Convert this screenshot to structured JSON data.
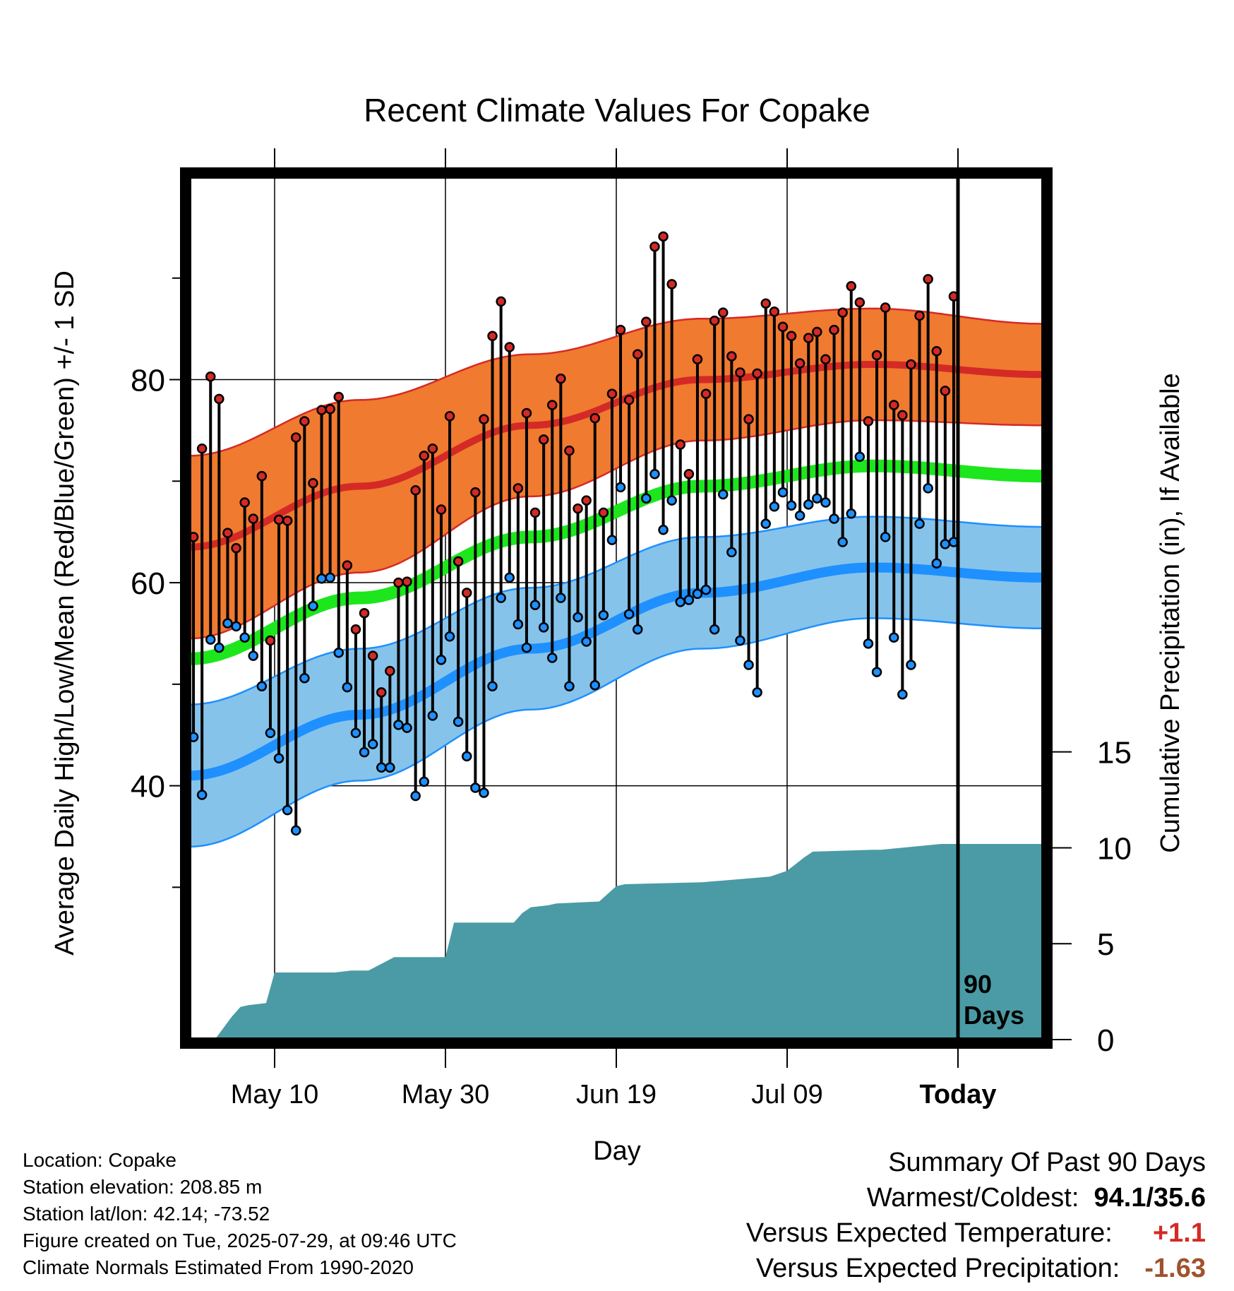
{
  "chart_data": {
    "type": "line",
    "title": "Recent Climate Values For Copake",
    "xlabel": "Day",
    "ylabel": "Average Daily High/Low/Mean (Red/Blue/Green) +/- 1 SD",
    "y2label": "Cumulative Precipitation (in), If Available",
    "xticks": [
      "May 10",
      "May 30",
      "Jun 19",
      "Jul 09",
      "Today"
    ],
    "yticks": [
      "40",
      "60",
      "80"
    ],
    "y2ticks": [
      "0",
      "5",
      "10",
      "15"
    ],
    "ylim": [
      15,
      100
    ],
    "y2lim": [
      0,
      45
    ],
    "x_start": "2025-04-30",
    "x_today": "2025-07-29",
    "x_end": "2025-08-08",
    "today_label": "90\nDays",
    "normals": {
      "days": [
        "2025-04-30",
        "2025-05-20",
        "2025-06-09",
        "2025-06-29",
        "2025-07-19",
        "2025-08-08"
      ],
      "high": [
        63.5,
        69.5,
        75.5,
        80.0,
        81.5,
        80.5
      ],
      "high_sd": [
        9.0,
        8.5,
        7.0,
        6.0,
        5.5,
        5.0
      ],
      "low": [
        41.0,
        47.0,
        53.5,
        59.0,
        61.5,
        60.5
      ],
      "low_sd": [
        7.0,
        6.5,
        6.0,
        5.5,
        5.0,
        5.0
      ],
      "mean": [
        52.5,
        58.5,
        64.5,
        69.5,
        71.5,
        70.5
      ]
    },
    "daily": {
      "start": "2025-04-30",
      "high": [
        64.5,
        73.2,
        80.3,
        78.1,
        64.9,
        63.4,
        67.9,
        66.3,
        70.5,
        54.3,
        66.2,
        66.1,
        74.3,
        75.9,
        69.8,
        77.0,
        77.1,
        78.3,
        61.7,
        55.4,
        57.0,
        52.8,
        49.2,
        51.3,
        60.0,
        60.1,
        69.1,
        72.5,
        73.2,
        67.2,
        76.4,
        62.1,
        59.0,
        68.9,
        76.1,
        84.3,
        87.7,
        83.2,
        69.3,
        76.7,
        66.9,
        74.1,
        77.5,
        80.1,
        73.0,
        67.3,
        68.1,
        76.2,
        66.9,
        78.6,
        84.9,
        78.0,
        82.5,
        85.7,
        93.1,
        94.1,
        89.4,
        73.6,
        70.7,
        82.0,
        78.6,
        85.8,
        86.6,
        82.3,
        80.7,
        76.1,
        80.6,
        87.5,
        86.7,
        85.2,
        84.3,
        81.6,
        84.1,
        84.7,
        82.0,
        84.9,
        86.6,
        89.2,
        87.6,
        75.9,
        82.4,
        87.1,
        77.5,
        76.5,
        81.5,
        86.3,
        89.9,
        82.8,
        78.9,
        88.2
      ],
      "low": [
        44.8,
        39.1,
        54.4,
        53.6,
        56.0,
        55.7,
        54.6,
        52.8,
        49.8,
        45.2,
        42.7,
        37.6,
        35.6,
        50.6,
        57.7,
        60.4,
        60.5,
        53.1,
        49.7,
        45.2,
        43.3,
        44.1,
        41.8,
        41.8,
        46.0,
        45.7,
        39.0,
        40.4,
        46.9,
        52.4,
        54.7,
        46.3,
        42.9,
        39.8,
        39.3,
        49.8,
        58.5,
        60.5,
        55.9,
        53.6,
        57.8,
        55.6,
        52.6,
        58.5,
        49.8,
        56.6,
        54.2,
        49.9,
        56.8,
        64.2,
        69.4,
        56.9,
        55.4,
        68.3,
        70.7,
        65.2,
        68.1,
        58.1,
        58.3,
        58.9,
        59.3,
        55.4,
        68.7,
        63.0,
        54.3,
        51.9,
        49.2,
        65.8,
        67.5,
        68.9,
        67.6,
        66.6,
        67.7,
        68.3,
        67.9,
        66.3,
        64.0,
        66.8,
        72.4,
        54.0,
        51.2,
        64.5,
        54.6,
        49.0,
        51.9,
        65.8,
        69.3,
        61.9,
        63.8,
        64.0
      ]
    },
    "precip": {
      "days": [
        3,
        5,
        6,
        7,
        9,
        10,
        11,
        17,
        19,
        21,
        24,
        30,
        31,
        38,
        39,
        40,
        42,
        43,
        48,
        50,
        51,
        60,
        68,
        70,
        72,
        73,
        80,
        81,
        88,
        90
      ],
      "values": [
        0,
        1.2,
        1.7,
        1.8,
        1.9,
        3.5,
        3.5,
        3.5,
        3.6,
        3.6,
        4.3,
        4.3,
        6.1,
        6.1,
        6.6,
        6.9,
        7.0,
        7.1,
        7.2,
        8.0,
        8.1,
        8.2,
        8.5,
        8.8,
        9.5,
        9.8,
        9.9,
        9.9,
        10.2,
        10.2
      ],
      "fill_to_end": 10.2
    }
  },
  "colors": {
    "high": "#d42a26",
    "high_band": "#f07a30",
    "low": "#1e90ff",
    "low_band": "#86c3ea",
    "mean": "#1de61d",
    "precip": "#4a9ba5"
  },
  "info": {
    "location": "Location: Copake",
    "elevation": "Station elevation: 208.85 m",
    "latlon": "Station lat/lon: 42.14; -73.52",
    "created": "Figure created on Tue, 2025-07-29, at 09:46 UTC",
    "normals": "Climate Normals Estimated From 1990-2020"
  },
  "summary": {
    "title": "Summary Of Past 90 Days",
    "warmest_label": "Warmest/Coldest:",
    "warmest_value": "94.1/35.6",
    "temp_label": "Versus Expected Temperature:",
    "temp_value": "+1.1",
    "temp_color": "#d42a26",
    "precip_label": "Versus Expected Precipitation:",
    "precip_value": "-1.63",
    "precip_color": "#a0522d"
  }
}
